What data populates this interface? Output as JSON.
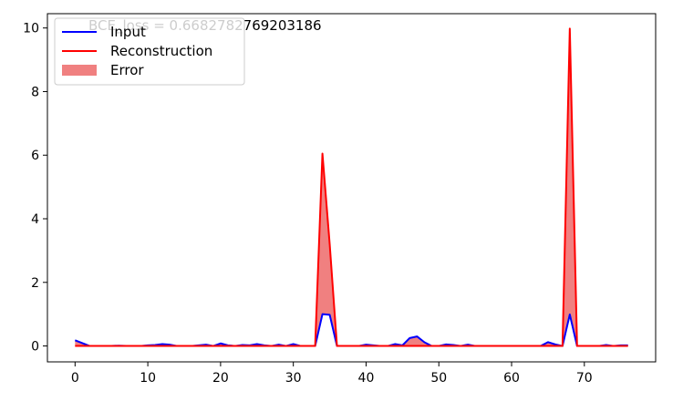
{
  "chart_data": {
    "type": "line",
    "title": "BCE_loss = 0.6682782769203186",
    "xlabel": "",
    "ylabel": "",
    "xlim": [
      -3.8,
      79.8
    ],
    "ylim": [
      -0.5,
      10.45
    ],
    "xticks": [
      0,
      10,
      20,
      30,
      40,
      50,
      60,
      70
    ],
    "yticks": [
      0,
      2,
      4,
      6,
      8,
      10
    ],
    "grid": false,
    "legend_position": "top-left",
    "x": [
      0,
      1,
      2,
      3,
      4,
      5,
      6,
      7,
      8,
      9,
      10,
      11,
      12,
      13,
      14,
      15,
      16,
      17,
      18,
      19,
      20,
      21,
      22,
      23,
      24,
      25,
      26,
      27,
      28,
      29,
      30,
      31,
      32,
      33,
      34,
      35,
      36,
      37,
      38,
      39,
      40,
      41,
      42,
      43,
      44,
      45,
      46,
      47,
      48,
      49,
      50,
      51,
      52,
      53,
      54,
      55,
      56,
      57,
      58,
      59,
      60,
      61,
      62,
      63,
      64,
      65,
      66,
      67,
      68,
      69,
      70,
      71,
      72,
      73,
      74,
      75,
      76
    ],
    "series": [
      {
        "name": "Input",
        "color": "#0000ff",
        "values": [
          0.18,
          0.09,
          0.0,
          0.0,
          0.0,
          0.0,
          0.01,
          0.0,
          0.0,
          0.0,
          0.02,
          0.03,
          0.06,
          0.04,
          0.0,
          0.0,
          0.0,
          0.02,
          0.04,
          0.0,
          0.08,
          0.02,
          0.0,
          0.03,
          0.02,
          0.06,
          0.02,
          0.0,
          0.04,
          0.0,
          0.06,
          0.0,
          0.0,
          0.0,
          1.0,
          0.98,
          0.0,
          0.0,
          0.0,
          0.0,
          0.04,
          0.02,
          0.0,
          0.0,
          0.06,
          0.02,
          0.25,
          0.3,
          0.12,
          0.0,
          0.0,
          0.05,
          0.03,
          0.0,
          0.04,
          0.0,
          0.0,
          0.0,
          0.0,
          0.0,
          0.0,
          0.0,
          0.0,
          0.0,
          0.0,
          0.12,
          0.05,
          0.0,
          0.99,
          0.0,
          0.0,
          0.0,
          0.0,
          0.03,
          0.0,
          0.02,
          0.02
        ]
      },
      {
        "name": "Reconstruction",
        "color": "#ff0000",
        "values": [
          0,
          0,
          0,
          0,
          0,
          0,
          0,
          0,
          0,
          0,
          0,
          0,
          0,
          0,
          0,
          0,
          0,
          0,
          0,
          0,
          0,
          0,
          0,
          0,
          0,
          0,
          0,
          0,
          0,
          0,
          0,
          0,
          0,
          0,
          6.05,
          3.2,
          0,
          0,
          0,
          0,
          0,
          0,
          0,
          0,
          0,
          0,
          0,
          0,
          0,
          0,
          0,
          0,
          0,
          0,
          0,
          0,
          0,
          0,
          0,
          0,
          0,
          0,
          0,
          0,
          0,
          0,
          0,
          0,
          9.98,
          0,
          0,
          0,
          0,
          0,
          0,
          0,
          0
        ]
      }
    ],
    "error_fill": {
      "name": "Error",
      "color": "#f08080"
    }
  }
}
